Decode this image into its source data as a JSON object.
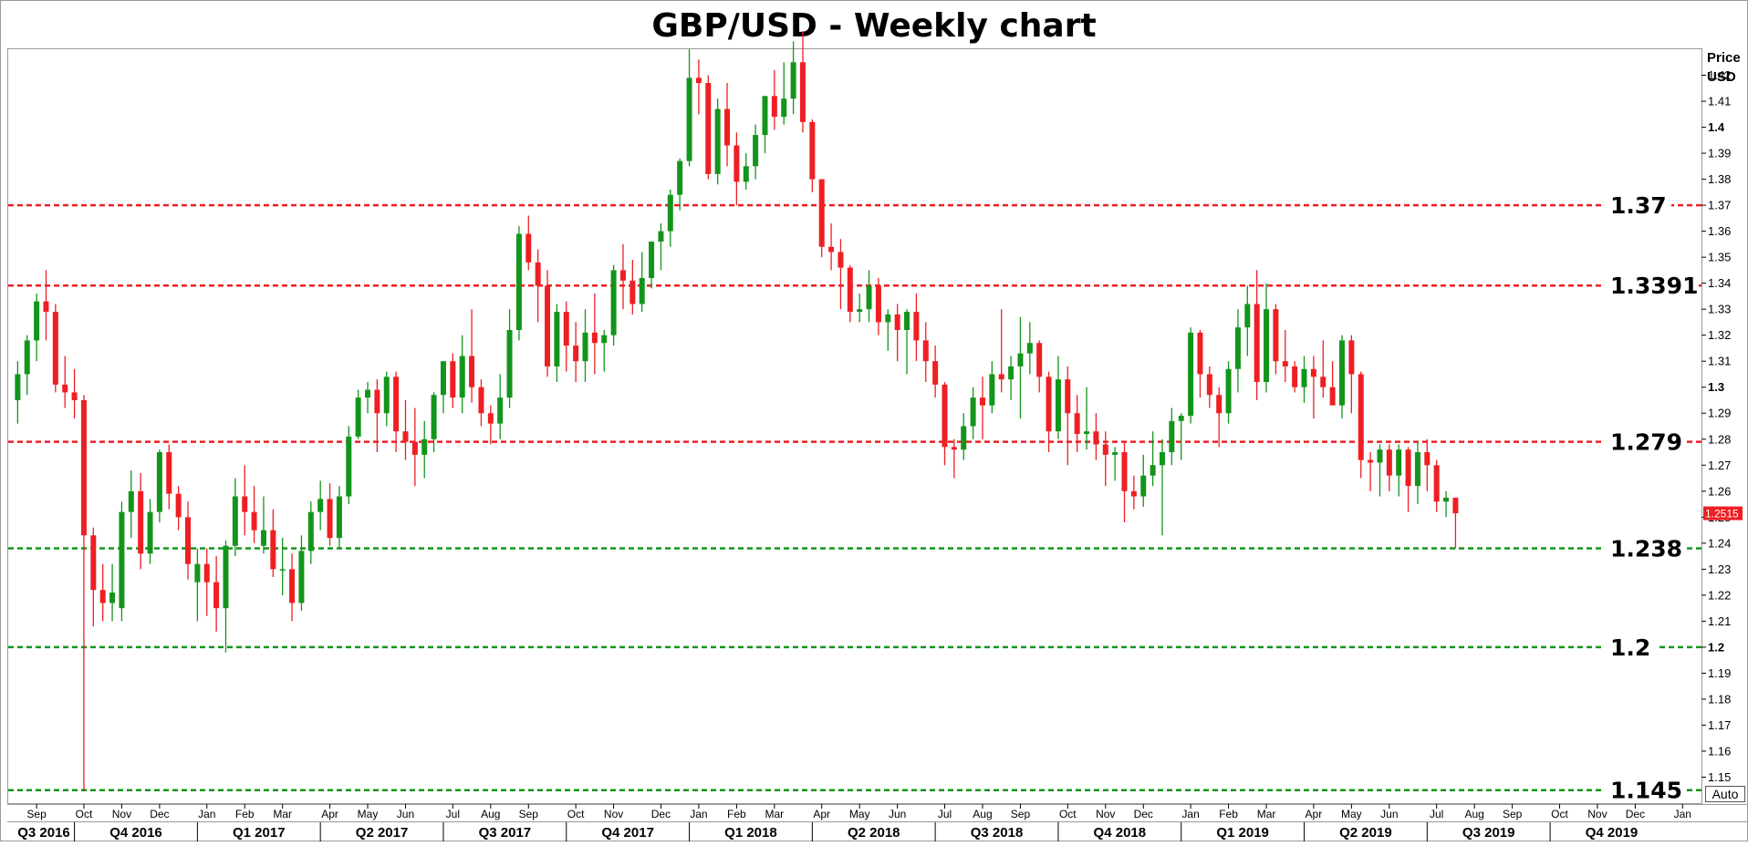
{
  "colors": {
    "up": "#13951b",
    "down": "#ee1f23",
    "resistance": "#ee1f23",
    "support": "#13951b",
    "current": "#ee1f23",
    "frame": "#9a9a9a"
  },
  "chart_data": {
    "type": "candlestick",
    "title": "GBP/USD - Weekly chart",
    "price_axis_label": [
      "Price",
      "USD"
    ],
    "ylim": [
      1.14,
      1.43
    ],
    "yticks": [
      1.15,
      1.16,
      1.17,
      1.18,
      1.19,
      1.2,
      1.21,
      1.22,
      1.23,
      1.24,
      1.25,
      1.26,
      1.27,
      1.28,
      1.29,
      1.3,
      1.31,
      1.32,
      1.33,
      1.34,
      1.35,
      1.36,
      1.37,
      1.38,
      1.39,
      1.4,
      1.41,
      1.42
    ],
    "ytick_labels": [
      "1.15",
      "1.16",
      "1.17",
      "1.18",
      "1.19",
      "1.2",
      "1.21",
      "1.22",
      "1.23",
      "1.24",
      "1.25",
      "1.26",
      "1.27",
      "1.28",
      "1.29",
      "1.3",
      "1.31",
      "1.32",
      "1.33",
      "1.34",
      "1.35",
      "1.36",
      "1.37",
      "1.38",
      "1.39",
      "1.4",
      "1.41",
      "1.42"
    ],
    "bold_ticks": [
      "1.4",
      "1.3",
      "1.2"
    ],
    "current_price": 1.2515,
    "current_price_label": "1.2515",
    "corner_button": "Auto",
    "months": [
      {
        "label": "Sep",
        "week": 2
      },
      {
        "label": "Oct",
        "week": 7
      },
      {
        "label": "Nov",
        "week": 11
      },
      {
        "label": "Dec",
        "week": 15
      },
      {
        "label": "Jan",
        "week": 20
      },
      {
        "label": "Feb",
        "week": 24
      },
      {
        "label": "Mar",
        "week": 28
      },
      {
        "label": "Apr",
        "week": 33
      },
      {
        "label": "May",
        "week": 37
      },
      {
        "label": "Jun",
        "week": 41
      },
      {
        "label": "Jul",
        "week": 46
      },
      {
        "label": "Aug",
        "week": 50
      },
      {
        "label": "Sep",
        "week": 54
      },
      {
        "label": "Oct",
        "week": 59
      },
      {
        "label": "Nov",
        "week": 63
      },
      {
        "label": "Dec",
        "week": 68
      },
      {
        "label": "Jan",
        "week": 72
      },
      {
        "label": "Feb",
        "week": 76
      },
      {
        "label": "Mar",
        "week": 80
      },
      {
        "label": "Apr",
        "week": 85
      },
      {
        "label": "May",
        "week": 89
      },
      {
        "label": "Jun",
        "week": 93
      },
      {
        "label": "Jul",
        "week": 98
      },
      {
        "label": "Aug",
        "week": 102
      },
      {
        "label": "Sep",
        "week": 106
      },
      {
        "label": "Oct",
        "week": 111
      },
      {
        "label": "Nov",
        "week": 115
      },
      {
        "label": "Dec",
        "week": 119
      },
      {
        "label": "Jan",
        "week": 124
      },
      {
        "label": "Feb",
        "week": 128
      },
      {
        "label": "Mar",
        "week": 132
      },
      {
        "label": "Apr",
        "week": 137
      },
      {
        "label": "May",
        "week": 141
      },
      {
        "label": "Jun",
        "week": 145
      },
      {
        "label": "Jul",
        "week": 150
      },
      {
        "label": "Aug",
        "week": 154
      },
      {
        "label": "Sep",
        "week": 158
      },
      {
        "label": "Oct",
        "week": 163
      },
      {
        "label": "Nov",
        "week": 167
      },
      {
        "label": "Dec",
        "week": 171
      },
      {
        "label": "Jan",
        "week": 176
      }
    ],
    "quarters": [
      {
        "label": "Q3 2016",
        "start": -5,
        "end": 6
      },
      {
        "label": "Q4 2016",
        "start": 6,
        "end": 19
      },
      {
        "label": "Q1 2017",
        "start": 19,
        "end": 32
      },
      {
        "label": "Q2 2017",
        "start": 32,
        "end": 45
      },
      {
        "label": "Q3 2017",
        "start": 45,
        "end": 58
      },
      {
        "label": "Q4 2017",
        "start": 58,
        "end": 71
      },
      {
        "label": "Q1 2018",
        "start": 71,
        "end": 84
      },
      {
        "label": "Q2 2018",
        "start": 84,
        "end": 97
      },
      {
        "label": "Q3 2018",
        "start": 97,
        "end": 110
      },
      {
        "label": "Q4 2018",
        "start": 110,
        "end": 123
      },
      {
        "label": "Q1 2019",
        "start": 123,
        "end": 136
      },
      {
        "label": "Q2 2019",
        "start": 136,
        "end": 149
      },
      {
        "label": "Q3 2019",
        "start": 149,
        "end": 162
      },
      {
        "label": "Q4 2019",
        "start": 162,
        "end": 175
      }
    ],
    "xlim": [
      -1,
      178
    ],
    "levels": [
      {
        "value": 1.37,
        "label": "1.37",
        "kind": "resistance"
      },
      {
        "value": 1.3391,
        "label": "1.3391",
        "kind": "resistance"
      },
      {
        "value": 1.279,
        "label": "1.279",
        "kind": "resistance"
      },
      {
        "value": 1.238,
        "label": "1.238",
        "kind": "support"
      },
      {
        "value": 1.2,
        "label": "1.2",
        "kind": "support"
      },
      {
        "value": 1.145,
        "label": "1.145",
        "kind": "support"
      }
    ],
    "candles": [
      [
        1.295,
        1.31,
        1.286,
        1.305
      ],
      [
        1.305,
        1.32,
        1.297,
        1.318
      ],
      [
        1.318,
        1.336,
        1.31,
        1.333
      ],
      [
        1.333,
        1.345,
        1.318,
        1.329
      ],
      [
        1.329,
        1.332,
        1.298,
        1.301
      ],
      [
        1.301,
        1.312,
        1.292,
        1.298
      ],
      [
        1.298,
        1.307,
        1.288,
        1.295
      ],
      [
        1.295,
        1.297,
        1.145,
        1.243
      ],
      [
        1.243,
        1.246,
        1.208,
        1.222
      ],
      [
        1.222,
        1.232,
        1.21,
        1.217
      ],
      [
        1.217,
        1.232,
        1.21,
        1.221
      ],
      [
        1.215,
        1.256,
        1.21,
        1.252
      ],
      [
        1.252,
        1.268,
        1.242,
        1.26
      ],
      [
        1.26,
        1.267,
        1.23,
        1.236
      ],
      [
        1.236,
        1.257,
        1.232,
        1.252
      ],
      [
        1.252,
        1.276,
        1.248,
        1.275
      ],
      [
        1.275,
        1.278,
        1.253,
        1.259
      ],
      [
        1.259,
        1.262,
        1.245,
        1.25
      ],
      [
        1.25,
        1.256,
        1.226,
        1.232
      ],
      [
        1.225,
        1.238,
        1.21,
        1.232
      ],
      [
        1.232,
        1.238,
        1.212,
        1.225
      ],
      [
        1.225,
        1.235,
        1.206,
        1.215
      ],
      [
        1.215,
        1.241,
        1.198,
        1.239
      ],
      [
        1.239,
        1.265,
        1.235,
        1.258
      ],
      [
        1.258,
        1.27,
        1.243,
        1.252
      ],
      [
        1.252,
        1.262,
        1.24,
        1.245
      ],
      [
        1.239,
        1.258,
        1.236,
        1.245
      ],
      [
        1.245,
        1.253,
        1.227,
        1.23
      ],
      [
        1.23,
        1.242,
        1.22,
        1.23
      ],
      [
        1.23,
        1.236,
        1.21,
        1.217
      ],
      [
        1.217,
        1.243,
        1.214,
        1.237
      ],
      [
        1.237,
        1.256,
        1.232,
        1.252
      ],
      [
        1.252,
        1.264,
        1.245,
        1.257
      ],
      [
        1.257,
        1.263,
        1.239,
        1.242
      ],
      [
        1.242,
        1.262,
        1.238,
        1.258
      ],
      [
        1.258,
        1.285,
        1.255,
        1.281
      ],
      [
        1.281,
        1.299,
        1.28,
        1.296
      ],
      [
        1.296,
        1.302,
        1.29,
        1.299
      ],
      [
        1.299,
        1.303,
        1.275,
        1.29
      ],
      [
        1.29,
        1.306,
        1.285,
        1.304
      ],
      [
        1.304,
        1.306,
        1.275,
        1.283
      ],
      [
        1.283,
        1.295,
        1.272,
        1.279
      ],
      [
        1.279,
        1.292,
        1.262,
        1.274
      ],
      [
        1.274,
        1.287,
        1.265,
        1.28
      ],
      [
        1.28,
        1.298,
        1.275,
        1.297
      ],
      [
        1.297,
        1.31,
        1.29,
        1.31
      ],
      [
        1.31,
        1.313,
        1.292,
        1.296
      ],
      [
        1.296,
        1.32,
        1.29,
        1.312
      ],
      [
        1.312,
        1.33,
        1.294,
        1.3
      ],
      [
        1.3,
        1.303,
        1.285,
        1.29
      ],
      [
        1.29,
        1.293,
        1.278,
        1.286
      ],
      [
        1.286,
        1.305,
        1.28,
        1.296
      ],
      [
        1.296,
        1.33,
        1.292,
        1.322
      ],
      [
        1.322,
        1.362,
        1.318,
        1.359
      ],
      [
        1.359,
        1.366,
        1.345,
        1.348
      ],
      [
        1.348,
        1.353,
        1.325,
        1.339
      ],
      [
        1.339,
        1.345,
        1.304,
        1.308
      ],
      [
        1.308,
        1.332,
        1.302,
        1.329
      ],
      [
        1.329,
        1.333,
        1.306,
        1.316
      ],
      [
        1.316,
        1.325,
        1.302,
        1.31
      ],
      [
        1.31,
        1.33,
        1.302,
        1.321
      ],
      [
        1.321,
        1.336,
        1.305,
        1.317
      ],
      [
        1.317,
        1.322,
        1.306,
        1.32
      ],
      [
        1.32,
        1.347,
        1.316,
        1.345
      ],
      [
        1.345,
        1.355,
        1.33,
        1.341
      ],
      [
        1.341,
        1.349,
        1.328,
        1.332
      ],
      [
        1.332,
        1.352,
        1.329,
        1.342
      ],
      [
        1.342,
        1.356,
        1.338,
        1.356
      ],
      [
        1.356,
        1.363,
        1.345,
        1.36
      ],
      [
        1.36,
        1.376,
        1.354,
        1.374
      ],
      [
        1.374,
        1.388,
        1.368,
        1.387
      ],
      [
        1.387,
        1.43,
        1.385,
        1.419
      ],
      [
        1.419,
        1.426,
        1.405,
        1.417
      ],
      [
        1.417,
        1.42,
        1.38,
        1.382
      ],
      [
        1.382,
        1.411,
        1.378,
        1.407
      ],
      [
        1.407,
        1.417,
        1.385,
        1.393
      ],
      [
        1.393,
        1.398,
        1.37,
        1.379
      ],
      [
        1.379,
        1.39,
        1.376,
        1.385
      ],
      [
        1.385,
        1.401,
        1.38,
        1.397
      ],
      [
        1.397,
        1.412,
        1.39,
        1.412
      ],
      [
        1.412,
        1.422,
        1.399,
        1.404
      ],
      [
        1.404,
        1.425,
        1.401,
        1.411
      ],
      [
        1.411,
        1.433,
        1.405,
        1.425
      ],
      [
        1.425,
        1.437,
        1.398,
        1.402
      ],
      [
        1.402,
        1.403,
        1.375,
        1.38
      ],
      [
        1.38,
        1.38,
        1.35,
        1.354
      ],
      [
        1.354,
        1.363,
        1.345,
        1.352
      ],
      [
        1.352,
        1.357,
        1.33,
        1.346
      ],
      [
        1.346,
        1.347,
        1.325,
        1.329
      ],
      [
        1.329,
        1.336,
        1.325,
        1.33
      ],
      [
        1.33,
        1.345,
        1.325,
        1.339
      ],
      [
        1.339,
        1.342,
        1.32,
        1.325
      ],
      [
        1.325,
        1.33,
        1.314,
        1.328
      ],
      [
        1.328,
        1.332,
        1.31,
        1.322
      ],
      [
        1.322,
        1.33,
        1.305,
        1.329
      ],
      [
        1.329,
        1.336,
        1.31,
        1.318
      ],
      [
        1.318,
        1.325,
        1.302,
        1.31
      ],
      [
        1.31,
        1.316,
        1.296,
        1.301
      ],
      [
        1.301,
        1.302,
        1.27,
        1.277
      ],
      [
        1.277,
        1.28,
        1.265,
        1.276
      ],
      [
        1.276,
        1.29,
        1.272,
        1.285
      ],
      [
        1.285,
        1.3,
        1.28,
        1.296
      ],
      [
        1.296,
        1.304,
        1.28,
        1.293
      ],
      [
        1.293,
        1.31,
        1.29,
        1.305
      ],
      [
        1.305,
        1.33,
        1.298,
        1.303
      ],
      [
        1.303,
        1.312,
        1.295,
        1.308
      ],
      [
        1.308,
        1.327,
        1.288,
        1.313
      ],
      [
        1.313,
        1.325,
        1.305,
        1.317
      ],
      [
        1.317,
        1.318,
        1.298,
        1.304
      ],
      [
        1.304,
        1.306,
        1.275,
        1.283
      ],
      [
        1.283,
        1.312,
        1.28,
        1.303
      ],
      [
        1.303,
        1.308,
        1.27,
        1.29
      ],
      [
        1.29,
        1.297,
        1.275,
        1.282
      ],
      [
        1.282,
        1.3,
        1.276,
        1.283
      ],
      [
        1.283,
        1.29,
        1.272,
        1.278
      ],
      [
        1.278,
        1.283,
        1.262,
        1.274
      ],
      [
        1.274,
        1.277,
        1.264,
        1.275
      ],
      [
        1.275,
        1.279,
        1.248,
        1.26
      ],
      [
        1.26,
        1.266,
        1.253,
        1.258
      ],
      [
        1.258,
        1.274,
        1.254,
        1.266
      ],
      [
        1.266,
        1.283,
        1.262,
        1.27
      ],
      [
        1.27,
        1.28,
        1.243,
        1.275
      ],
      [
        1.275,
        1.292,
        1.27,
        1.287
      ],
      [
        1.287,
        1.29,
        1.272,
        1.289
      ],
      [
        1.289,
        1.323,
        1.286,
        1.321
      ],
      [
        1.321,
        1.322,
        1.296,
        1.305
      ],
      [
        1.305,
        1.308,
        1.292,
        1.297
      ],
      [
        1.297,
        1.3,
        1.277,
        1.29
      ],
      [
        1.29,
        1.31,
        1.286,
        1.307
      ],
      [
        1.307,
        1.33,
        1.298,
        1.323
      ],
      [
        1.323,
        1.339,
        1.312,
        1.332
      ],
      [
        1.332,
        1.345,
        1.295,
        1.302
      ],
      [
        1.302,
        1.34,
        1.298,
        1.33
      ],
      [
        1.33,
        1.332,
        1.305,
        1.31
      ],
      [
        1.31,
        1.322,
        1.302,
        1.308
      ],
      [
        1.308,
        1.31,
        1.298,
        1.3
      ],
      [
        1.3,
        1.312,
        1.294,
        1.307
      ],
      [
        1.307,
        1.312,
        1.288,
        1.304
      ],
      [
        1.304,
        1.318,
        1.296,
        1.3
      ],
      [
        1.3,
        1.31,
        1.295,
        1.293
      ],
      [
        1.293,
        1.32,
        1.288,
        1.318
      ],
      [
        1.318,
        1.32,
        1.29,
        1.305
      ],
      [
        1.305,
        1.306,
        1.265,
        1.272
      ],
      [
        1.272,
        1.275,
        1.26,
        1.271
      ],
      [
        1.271,
        1.278,
        1.258,
        1.276
      ],
      [
        1.276,
        1.278,
        1.26,
        1.266
      ],
      [
        1.266,
        1.278,
        1.258,
        1.276
      ],
      [
        1.276,
        1.277,
        1.252,
        1.262
      ],
      [
        1.262,
        1.279,
        1.255,
        1.275
      ],
      [
        1.275,
        1.28,
        1.26,
        1.27
      ],
      [
        1.27,
        1.272,
        1.252,
        1.256
      ],
      [
        1.256,
        1.26,
        1.25,
        1.2575
      ],
      [
        1.2575,
        1.2575,
        1.238,
        1.2515
      ]
    ]
  }
}
